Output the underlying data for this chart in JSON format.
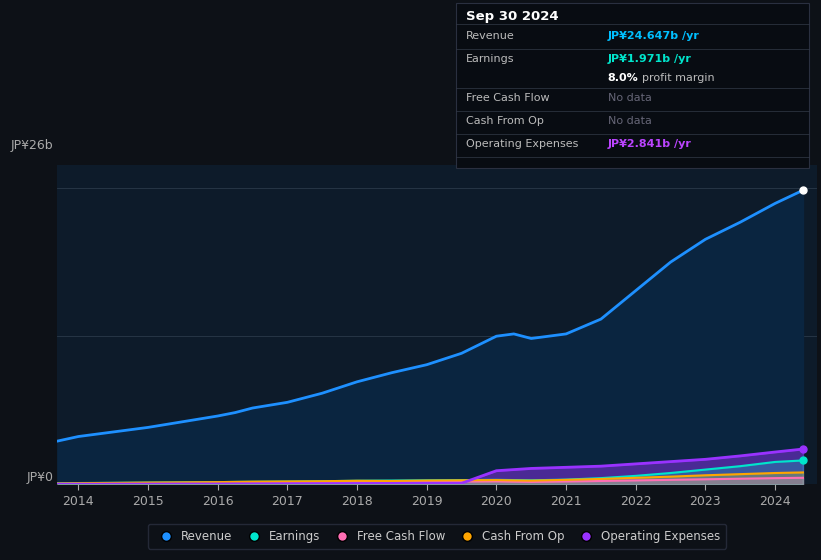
{
  "bg_color": "#0d1117",
  "plot_bg_color": "#0d1b2a",
  "title": "Sep 30 2024",
  "y_label_top": "JP¥26b",
  "y_label_bottom": "JP¥0",
  "x_ticks": [
    2014,
    2015,
    2016,
    2017,
    2018,
    2019,
    2020,
    2021,
    2022,
    2023,
    2024
  ],
  "ylim_max": 28,
  "years": [
    2013.7,
    2014.0,
    2014.25,
    2014.5,
    2015.0,
    2015.5,
    2016.0,
    2016.25,
    2016.5,
    2017.0,
    2017.5,
    2018.0,
    2018.5,
    2019.0,
    2019.5,
    2020.0,
    2020.25,
    2020.5,
    2021.0,
    2021.5,
    2022.0,
    2022.5,
    2023.0,
    2023.5,
    2024.0,
    2024.4
  ],
  "revenue": [
    3.8,
    4.2,
    4.4,
    4.6,
    5.0,
    5.5,
    6.0,
    6.3,
    6.7,
    7.2,
    8.0,
    9.0,
    9.8,
    10.5,
    11.5,
    13.0,
    13.2,
    12.8,
    13.2,
    14.5,
    17.0,
    19.5,
    21.5,
    23.0,
    24.647,
    25.8
  ],
  "earnings": [
    0.1,
    0.12,
    0.13,
    0.14,
    0.16,
    0.18,
    0.2,
    0.22,
    0.23,
    0.25,
    0.28,
    0.32,
    0.34,
    0.36,
    0.38,
    0.4,
    0.38,
    0.36,
    0.42,
    0.55,
    0.75,
    1.0,
    1.3,
    1.6,
    1.971,
    2.1
  ],
  "free_cash_flow": [
    0.04,
    0.06,
    0.07,
    0.08,
    0.1,
    0.12,
    0.13,
    0.15,
    0.16,
    0.18,
    0.2,
    0.22,
    0.21,
    0.23,
    0.25,
    0.27,
    0.24,
    0.22,
    0.26,
    0.3,
    0.35,
    0.4,
    0.45,
    0.5,
    0.55,
    0.58
  ],
  "cash_from_op": [
    0.08,
    0.1,
    0.12,
    0.13,
    0.16,
    0.18,
    0.2,
    0.22,
    0.24,
    0.26,
    0.28,
    0.32,
    0.3,
    0.34,
    0.36,
    0.38,
    0.35,
    0.33,
    0.4,
    0.48,
    0.58,
    0.68,
    0.8,
    0.9,
    1.0,
    1.05
  ],
  "operating_expenses": [
    0.02,
    0.02,
    0.02,
    0.03,
    0.03,
    0.04,
    0.04,
    0.05,
    0.05,
    0.06,
    0.07,
    0.08,
    0.09,
    0.1,
    0.1,
    1.2,
    1.3,
    1.4,
    1.5,
    1.6,
    1.8,
    2.0,
    2.2,
    2.5,
    2.841,
    3.1
  ],
  "revenue_color": "#1e90ff",
  "earnings_color": "#00e5cc",
  "fcf_color": "#ff6eb4",
  "cashop_color": "#ffa500",
  "opex_color": "#9932ff",
  "info_box": {
    "date": "Sep 30 2024",
    "revenue_val": "JP¥24.647b",
    "revenue_color": "#00bfff",
    "earnings_val": "JP¥1.971b",
    "earnings_color": "#00e5cc",
    "profit_margin": "8.0%",
    "no_data": "No data",
    "opex_val": "JP¥2.841b",
    "opex_color": "#bb44ff"
  },
  "legend": [
    {
      "label": "Revenue",
      "color": "#1e90ff"
    },
    {
      "label": "Earnings",
      "color": "#00e5cc"
    },
    {
      "label": "Free Cash Flow",
      "color": "#ff6eb4"
    },
    {
      "label": "Cash From Op",
      "color": "#ffa500"
    },
    {
      "label": "Operating Expenses",
      "color": "#9932ff"
    }
  ]
}
